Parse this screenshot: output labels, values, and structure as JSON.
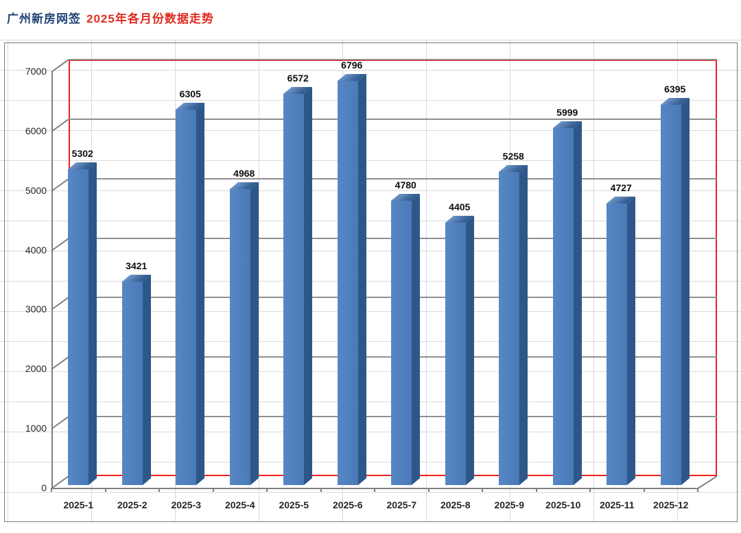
{
  "title": {
    "prefix": "广州新房网签",
    "main": "2025年各月份数据走势",
    "prefix_color": "#1f4473",
    "main_color": "#e02b20"
  },
  "chart_data": {
    "type": "bar",
    "projection": "3d-column",
    "title": "广州新房网签 2025年各月份数据走势",
    "categories": [
      "2025-1",
      "2025-2",
      "2025-3",
      "2025-4",
      "2025-5",
      "2025-6",
      "2025-7",
      "2025-8",
      "2025-9",
      "2025-10",
      "2025-11",
      "2025-12"
    ],
    "values": [
      5302,
      3421,
      6305,
      4968,
      6572,
      6796,
      4780,
      4405,
      5258,
      5999,
      4727,
      6395
    ],
    "data_labels_shown": true,
    "xlabel": "",
    "ylabel": "",
    "ylim": [
      0,
      7000
    ],
    "ytick_interval": 1000,
    "yticks": [
      0,
      1000,
      2000,
      3000,
      4000,
      5000,
      6000,
      7000
    ],
    "grid": "major-horizontal-on",
    "legend": "none",
    "colors": {
      "bar_front": "#4a79b8",
      "bar_front_light": "#5787c4",
      "bar_side": "#2e5789",
      "bar_top_light": "#7096ca",
      "bar_top_dark": "#325e92",
      "plot_border_red": "#ef1f1a",
      "major_gridline": "#8f8f8f",
      "axis_line": "#7f7f7f",
      "chart_border": "#7a7a7a",
      "sheet_gridline": "#d9d9d9",
      "value_label": "#0d0d0d",
      "tick_label": "#262626"
    }
  }
}
